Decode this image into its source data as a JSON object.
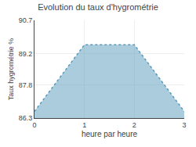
{
  "chart_data": {
    "type": "area",
    "title": "Evolution du taux d'hygrométrie",
    "x_label": "heure par heure",
    "y_label": "Taux hygrométrie %",
    "x": [
      0,
      1,
      2,
      3
    ],
    "values": [
      86.6,
      89.6,
      89.6,
      86.6
    ],
    "color": "#5599bb",
    "line_style": "dotted",
    "xlim": [
      0,
      3
    ],
    "xticks": [
      0,
      1,
      2,
      3
    ],
    "ylim": [
      86.3,
      90.7
    ],
    "yticks": [
      86.3,
      87.8,
      89.2,
      90.7
    ],
    "grid": true
  }
}
